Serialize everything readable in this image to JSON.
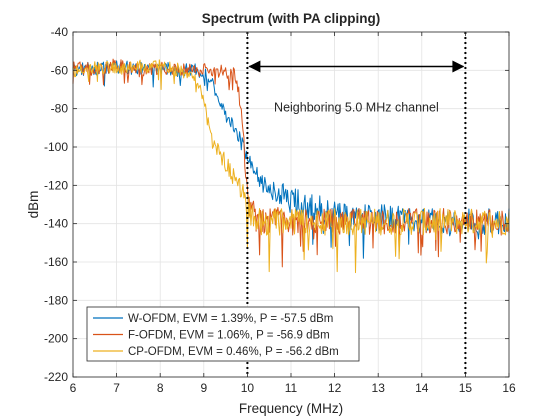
{
  "chart_data": {
    "type": "line",
    "title": "Spectrum (with PA clipping)",
    "xlabel": "Frequency (MHz)",
    "ylabel": "dBm",
    "xlim": [
      6,
      16
    ],
    "ylim": [
      -220,
      -40
    ],
    "xticks": [
      6,
      7,
      8,
      9,
      10,
      11,
      12,
      13,
      14,
      15,
      16
    ],
    "yticks": [
      -220,
      -200,
      -180,
      -160,
      -140,
      -120,
      -100,
      -80,
      -60,
      -40
    ],
    "grid": true,
    "legend_position": "bottom-left",
    "annotation": {
      "text": "Neighboring 5.0 MHz channel",
      "x_start": 10,
      "x_end": 15,
      "y": -73,
      "dashed_lines_x": [
        10,
        15
      ]
    },
    "series": [
      {
        "name": "W-OFDM, EVM = 1.39%, P = -57.5 dBm",
        "color": "#0072BD",
        "points": [
          [
            6,
            -60
          ],
          [
            6.5,
            -59
          ],
          [
            7,
            -58
          ],
          [
            7.5,
            -59
          ],
          [
            8,
            -59
          ],
          [
            8.5,
            -60
          ],
          [
            8.8,
            -60
          ],
          [
            9.05,
            -62
          ],
          [
            9.2,
            -66
          ],
          [
            9.35,
            -75
          ],
          [
            9.5,
            -84
          ],
          [
            9.65,
            -88
          ],
          [
            9.8,
            -95
          ],
          [
            9.95,
            -103
          ],
          [
            10.1,
            -112
          ],
          [
            10.3,
            -118
          ],
          [
            10.5,
            -122
          ],
          [
            10.7,
            -124
          ],
          [
            11,
            -128
          ],
          [
            11.3,
            -130
          ],
          [
            11.6,
            -132
          ],
          [
            12,
            -134
          ],
          [
            12.5,
            -136
          ],
          [
            13,
            -137
          ],
          [
            14,
            -138
          ],
          [
            15,
            -139
          ],
          [
            16,
            -139
          ]
        ]
      },
      {
        "name": "F-OFDM, EVM = 1.06%, P = -56.9 dBm",
        "color": "#D95319",
        "points": [
          [
            6,
            -58
          ],
          [
            6.5,
            -60
          ],
          [
            7,
            -57
          ],
          [
            7.5,
            -60
          ],
          [
            8,
            -59
          ],
          [
            8.5,
            -59
          ],
          [
            9,
            -60
          ],
          [
            9.3,
            -60
          ],
          [
            9.5,
            -61
          ],
          [
            9.7,
            -62
          ],
          [
            9.8,
            -72
          ],
          [
            9.9,
            -90
          ],
          [
            9.95,
            -110
          ],
          [
            10.05,
            -130
          ],
          [
            10.2,
            -138
          ],
          [
            10.5,
            -138
          ],
          [
            11,
            -139
          ],
          [
            12,
            -139
          ],
          [
            13,
            -139
          ],
          [
            14,
            -139
          ],
          [
            15,
            -139
          ],
          [
            16,
            -139
          ]
        ]
      },
      {
        "name": "CP-OFDM, EVM = 0.46%, P = -56.2 dBm",
        "color": "#EDB120",
        "points": [
          [
            6,
            -60
          ],
          [
            6.5,
            -58
          ],
          [
            7,
            -59
          ],
          [
            7.5,
            -58
          ],
          [
            8,
            -58
          ],
          [
            8.5,
            -60
          ],
          [
            8.8,
            -64
          ],
          [
            8.95,
            -72
          ],
          [
            9.05,
            -82
          ],
          [
            9.15,
            -92
          ],
          [
            9.25,
            -100
          ],
          [
            9.4,
            -104
          ],
          [
            9.55,
            -110
          ],
          [
            9.7,
            -116
          ],
          [
            9.85,
            -122
          ],
          [
            9.95,
            -126
          ],
          [
            10.05,
            -134
          ],
          [
            10.2,
            -139
          ],
          [
            11,
            -139
          ],
          [
            12,
            -139
          ],
          [
            13,
            -139
          ],
          [
            14,
            -139
          ],
          [
            15,
            -139
          ],
          [
            16,
            -139
          ]
        ]
      }
    ]
  }
}
